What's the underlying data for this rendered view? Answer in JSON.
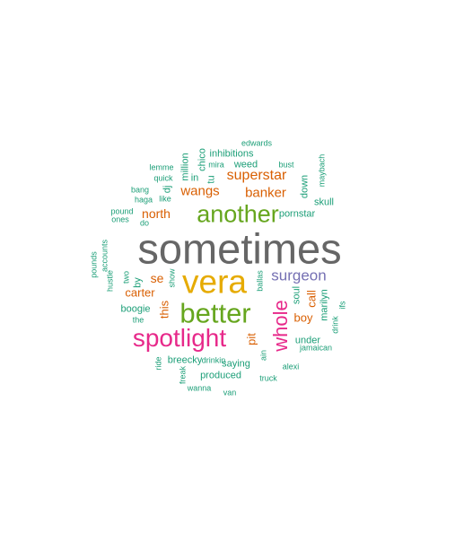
{
  "colors": {
    "gray": "#666666",
    "orange": "#d95f02",
    "green": "#66a61e",
    "gold": "#e6ab02",
    "pink": "#e7298a",
    "purple": "#7570b3",
    "teal": "#1b9e77"
  },
  "words": [
    {
      "text": "sometimes",
      "weight": 10,
      "color": "gray",
      "vertical": false
    },
    {
      "text": "vera",
      "weight": 8,
      "color": "gold",
      "vertical": false
    },
    {
      "text": "better",
      "weight": 7,
      "color": "green",
      "vertical": false
    },
    {
      "text": "spotlight",
      "weight": 6,
      "color": "pink",
      "vertical": false
    },
    {
      "text": "another",
      "weight": 6,
      "color": "green",
      "vertical": false
    },
    {
      "text": "whole",
      "weight": 5,
      "color": "pink",
      "vertical": true
    },
    {
      "text": "surgeon",
      "weight": 4,
      "color": "purple",
      "vertical": false
    },
    {
      "text": "superstar",
      "weight": 3,
      "color": "orange",
      "vertical": false
    },
    {
      "text": "wangs",
      "weight": 3,
      "color": "orange",
      "vertical": false
    },
    {
      "text": "banker",
      "weight": 3,
      "color": "orange",
      "vertical": false
    },
    {
      "text": "north",
      "weight": 3,
      "color": "orange",
      "vertical": false
    },
    {
      "text": "se",
      "weight": 3,
      "color": "orange",
      "vertical": false
    },
    {
      "text": "carter",
      "weight": 2,
      "color": "orange",
      "vertical": false
    },
    {
      "text": "this",
      "weight": 2,
      "color": "orange",
      "vertical": true
    },
    {
      "text": "pit",
      "weight": 2,
      "color": "orange",
      "vertical": true
    },
    {
      "text": "call",
      "weight": 2,
      "color": "orange",
      "vertical": true
    },
    {
      "text": "boy",
      "weight": 2,
      "color": "orange",
      "vertical": false
    },
    {
      "text": "pornstar",
      "weight": 1,
      "color": "teal",
      "vertical": false
    },
    {
      "text": "skull",
      "weight": 1,
      "color": "teal",
      "vertical": false
    },
    {
      "text": "down",
      "weight": 1,
      "color": "teal",
      "vertical": true
    },
    {
      "text": "soul",
      "weight": 1,
      "color": "teal",
      "vertical": true
    },
    {
      "text": "marilyn",
      "weight": 1,
      "color": "teal",
      "vertical": true
    },
    {
      "text": "under",
      "weight": 1,
      "color": "teal",
      "vertical": false
    },
    {
      "text": "saying",
      "weight": 1,
      "color": "teal",
      "vertical": false
    },
    {
      "text": "breecky",
      "weight": 1,
      "color": "teal",
      "vertical": false
    },
    {
      "text": "produced",
      "weight": 1,
      "color": "teal",
      "vertical": false
    },
    {
      "text": "boogie",
      "weight": 1,
      "color": "teal",
      "vertical": false
    },
    {
      "text": "inhibitions",
      "weight": 1,
      "color": "teal",
      "vertical": false
    },
    {
      "text": "weed",
      "weight": 1,
      "color": "teal",
      "vertical": false
    },
    {
      "text": "million",
      "weight": 1,
      "color": "teal",
      "vertical": true
    },
    {
      "text": "chico",
      "weight": 1,
      "color": "teal",
      "vertical": true
    },
    {
      "text": "tu",
      "weight": 1,
      "color": "teal",
      "vertical": true
    },
    {
      "text": "in",
      "weight": 1,
      "color": "teal",
      "vertical": false
    },
    {
      "text": "dj",
      "weight": 1,
      "color": "teal",
      "vertical": true
    },
    {
      "text": "mira",
      "weight": 0,
      "color": "teal",
      "vertical": false
    },
    {
      "text": "edwards",
      "weight": 0,
      "color": "teal",
      "vertical": false
    },
    {
      "text": "bust",
      "weight": 0,
      "color": "teal",
      "vertical": false
    },
    {
      "text": "maybach",
      "weight": 0,
      "color": "teal",
      "vertical": true
    },
    {
      "text": "lemme",
      "weight": 0,
      "color": "teal",
      "vertical": false
    },
    {
      "text": "quick",
      "weight": 0,
      "color": "teal",
      "vertical": false
    },
    {
      "text": "bang",
      "weight": 0,
      "color": "teal",
      "vertical": false
    },
    {
      "text": "haga",
      "weight": 0,
      "color": "teal",
      "vertical": false
    },
    {
      "text": "like",
      "weight": 0,
      "color": "teal",
      "vertical": false
    },
    {
      "text": "pound",
      "weight": 0,
      "color": "teal",
      "vertical": false
    },
    {
      "text": "ones",
      "weight": 0,
      "color": "teal",
      "vertical": false
    },
    {
      "text": "do",
      "weight": 0,
      "color": "teal",
      "vertical": false
    },
    {
      "text": "accounts",
      "weight": 0,
      "color": "teal",
      "vertical": true
    },
    {
      "text": "pounds",
      "weight": 0,
      "color": "teal",
      "vertical": true
    },
    {
      "text": "hustle",
      "weight": 0,
      "color": "teal",
      "vertical": true
    },
    {
      "text": "two",
      "weight": 0,
      "color": "teal",
      "vertical": true
    },
    {
      "text": "by",
      "weight": 1,
      "color": "teal",
      "vertical": true
    },
    {
      "text": "show",
      "weight": 0,
      "color": "teal",
      "vertical": true
    },
    {
      "text": "ballas",
      "weight": 0,
      "color": "teal",
      "vertical": true
    },
    {
      "text": "the",
      "weight": 0,
      "color": "teal",
      "vertical": false
    },
    {
      "text": "ifs",
      "weight": 0,
      "color": "teal",
      "vertical": true
    },
    {
      "text": "drink",
      "weight": 0,
      "color": "teal",
      "vertical": true
    },
    {
      "text": "jamaican",
      "weight": 0,
      "color": "teal",
      "vertical": false
    },
    {
      "text": "ain",
      "weight": 0,
      "color": "teal",
      "vertical": true
    },
    {
      "text": "alexi",
      "weight": 0,
      "color": "teal",
      "vertical": false
    },
    {
      "text": "drinkin",
      "weight": 0,
      "color": "teal",
      "vertical": false
    },
    {
      "text": "ride",
      "weight": 0,
      "color": "teal",
      "vertical": true
    },
    {
      "text": "freak",
      "weight": 0,
      "color": "teal",
      "vertical": true
    },
    {
      "text": "truck",
      "weight": 0,
      "color": "teal",
      "vertical": false
    },
    {
      "text": "wanna",
      "weight": 0,
      "color": "teal",
      "vertical": false
    },
    {
      "text": "van",
      "weight": 0,
      "color": "teal",
      "vertical": false
    }
  ]
}
